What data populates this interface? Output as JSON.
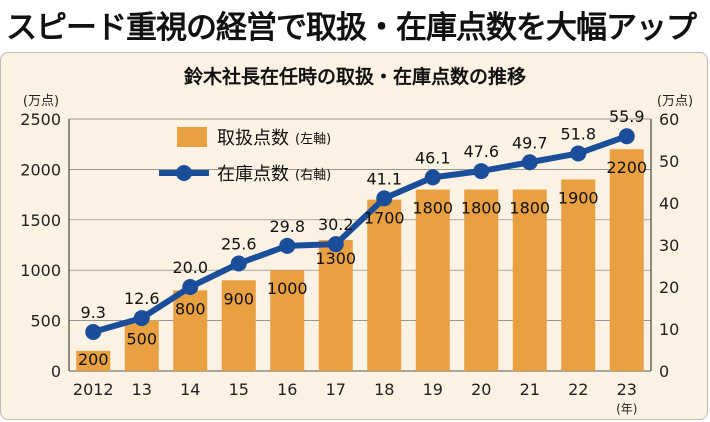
{
  "headline": "スピード重視の経営で取扱・在庫点数を大幅アップ",
  "colors": {
    "bar": "#e8a040",
    "line": "#1a4e9a",
    "background": "#fbf2e3",
    "grid": "#777777"
  },
  "chart_data": {
    "type": "bar+line",
    "title": "鈴木社長在任時の取扱・在庫点数の推移",
    "categories": [
      "2012",
      "13",
      "14",
      "15",
      "16",
      "17",
      "18",
      "19",
      "20",
      "21",
      "22",
      "23"
    ],
    "x_unit": "(年)",
    "series": [
      {
        "name": "取扱点数",
        "axis_note": "(左軸)",
        "type": "bar",
        "axis": "left",
        "values": [
          200,
          500,
          800,
          900,
          1000,
          1300,
          1700,
          1800,
          1800,
          1800,
          1900,
          2200
        ]
      },
      {
        "name": "在庫点数",
        "axis_note": "(右軸)",
        "type": "line",
        "axis": "right",
        "values": [
          9.3,
          12.6,
          20.0,
          25.6,
          29.8,
          30.2,
          41.1,
          46.1,
          47.6,
          49.7,
          51.8,
          55.9
        ]
      }
    ],
    "left_axis": {
      "unit": "(万点)",
      "min": 0,
      "max": 2500,
      "ticks": [
        0,
        500,
        1000,
        1500,
        2000,
        2500
      ]
    },
    "right_axis": {
      "unit": "(万点)",
      "min": 0,
      "max": 60,
      "ticks": [
        0,
        10,
        20,
        30,
        40,
        50,
        60
      ]
    },
    "grid": true,
    "legend_position": "top-left"
  }
}
